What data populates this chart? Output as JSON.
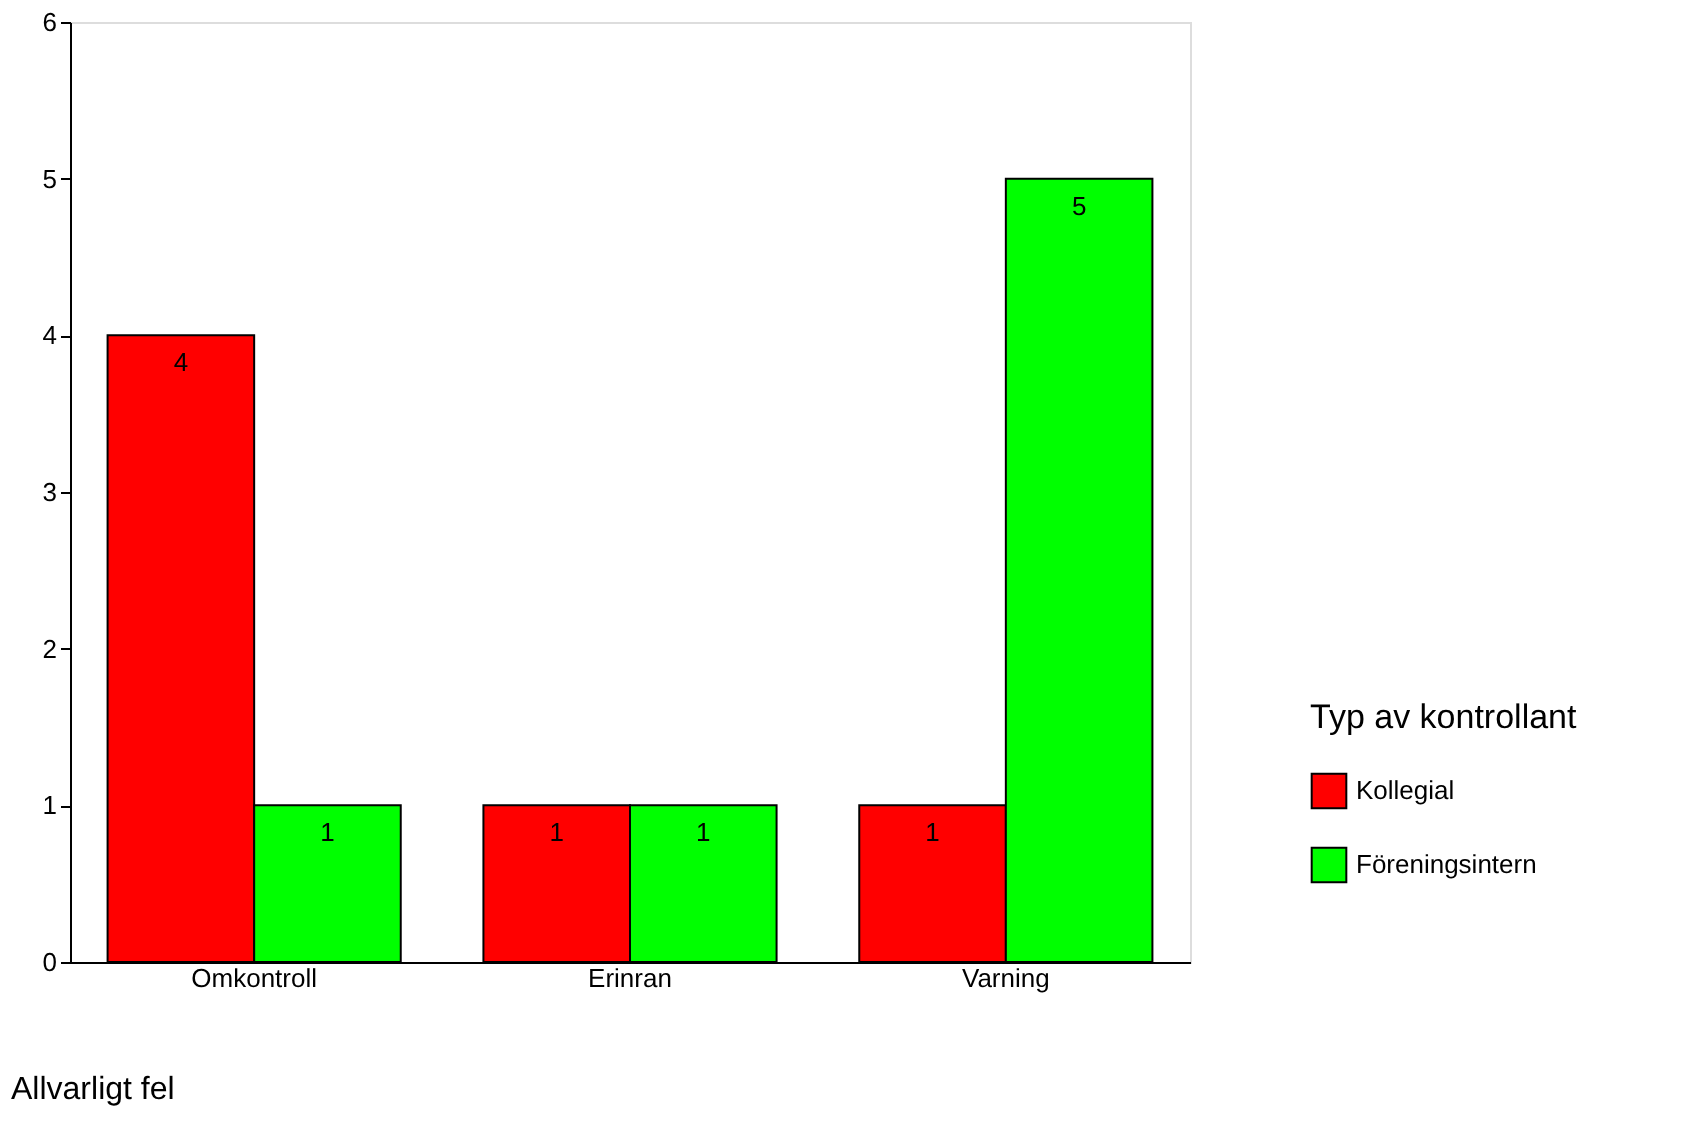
{
  "chart_data": {
    "type": "bar",
    "xlabel": "Allvarligt fel",
    "legend_title": "Typ av kontrollant",
    "categories": [
      "Omkontroll",
      "Erinran",
      "Varning"
    ],
    "series": [
      {
        "name": "Kollegial",
        "color": "#ff0000",
        "values": [
          4,
          1,
          1
        ]
      },
      {
        "name": "Föreningsintern",
        "color": "#00ff00",
        "values": [
          1,
          1,
          5
        ]
      }
    ],
    "ylim": [
      0,
      6
    ],
    "yticks": [
      0,
      1,
      2,
      3,
      4,
      5,
      6
    ],
    "grid": false,
    "legend": "right",
    "data_labels": true
  }
}
